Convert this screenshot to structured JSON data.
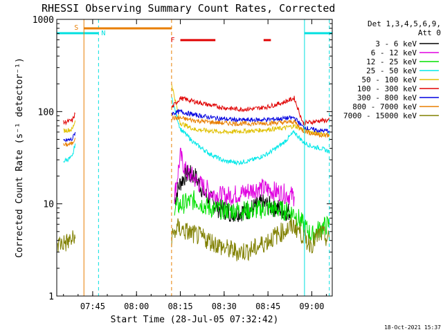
{
  "title": "RHESSI Observing Summary Count Rates, Corrected",
  "footer_date": "18-Oct-2021 15:37",
  "chart_data": {
    "type": "line",
    "title": "RHESSI Observing Summary Count Rates, Corrected",
    "xlabel": "Start Time (28-Jul-05 07:32:42)",
    "ylabel": "Corrected Count Rate (s⁻¹ detector⁻¹)",
    "y_scale": "log",
    "ylim": [
      1,
      1000
    ],
    "xlim": [
      "07:32:42",
      "09:07:00"
    ],
    "grid": false,
    "x_ticks": [
      "07:45",
      "08:00",
      "08:15",
      "08:30",
      "08:45",
      "09:00"
    ],
    "y_ticks": [
      "1",
      "10",
      "100",
      "1000"
    ],
    "legend_position": "right",
    "legend_header": [
      "Det 1,3,4,5,6,9,",
      "Att 0"
    ],
    "markers": [
      {
        "label": "S",
        "color": "#e87e00"
      },
      {
        "label": "N",
        "color": "#00e0e0"
      },
      {
        "label": "F",
        "color": "#e00000"
      }
    ],
    "night_intervals": [
      [
        "07:32:42",
        "07:47:00"
      ],
      [
        "08:57:30",
        "09:07:00"
      ]
    ],
    "saa_interval": [
      "07:42:00",
      "08:12:00"
    ],
    "flare_intervals": [
      [
        "08:15:00",
        "08:27:00"
      ],
      [
        "08:43:30",
        "08:46:00"
      ]
    ],
    "series": [
      {
        "name": "3 - 6 keV",
        "color": "#000000",
        "x": [
          "08:13",
          "08:15",
          "08:17",
          "08:20",
          "08:24",
          "08:28",
          "08:33",
          "08:38",
          "08:43",
          "08:48",
          "08:53"
        ],
        "values": [
          11,
          17,
          21,
          20,
          12,
          9,
          8,
          8.5,
          10,
          9,
          8
        ]
      },
      {
        "name": "6 - 12 keV",
        "color": "#e000e0",
        "x": [
          "08:13",
          "08:15",
          "08:17",
          "08:19",
          "08:22",
          "08:26",
          "08:30",
          "08:36",
          "08:42",
          "08:46",
          "08:50",
          "08:54"
        ],
        "values": [
          12,
          33,
          22,
          20,
          16,
          13,
          12,
          13,
          15,
          14,
          13,
          12
        ]
      },
      {
        "name": "12 - 25 keV",
        "color": "#00e000",
        "x": [
          "08:13",
          "08:16",
          "08:20",
          "08:25",
          "08:30",
          "08:35",
          "08:40",
          "08:45",
          "08:50",
          "08:54",
          "08:57",
          "09:00",
          "09:03",
          "09:06"
        ],
        "values": [
          9,
          10,
          11,
          9,
          8.5,
          8.5,
          8.5,
          9,
          8.5,
          8,
          6,
          4.5,
          5.5,
          6
        ]
      },
      {
        "name": "25 - 50 keV",
        "color": "#00e8e8",
        "x": [
          "07:35",
          "07:38",
          "07:39",
          "08:12",
          "08:15",
          "08:20",
          "08:25",
          "08:30",
          "08:35",
          "08:40",
          "08:45",
          "08:50",
          "08:54",
          "08:57",
          "09:00",
          "09:03",
          "09:06"
        ],
        "values": [
          29,
          32,
          45,
          140,
          65,
          45,
          35,
          29,
          28,
          30,
          35,
          45,
          60,
          47,
          42,
          40,
          37
        ]
      },
      {
        "name": "50 - 100 keV",
        "color": "#e0c000",
        "x": [
          "07:35",
          "07:38",
          "07:39",
          "08:12",
          "08:15",
          "08:20",
          "08:25",
          "08:30",
          "08:35",
          "08:40",
          "08:45",
          "08:50",
          "08:54",
          "08:57",
          "09:00",
          "09:03",
          "09:06"
        ],
        "values": [
          62,
          64,
          80,
          200,
          75,
          64,
          62,
          60,
          61,
          62,
          64,
          66,
          70,
          64,
          60,
          57,
          56
        ]
      },
      {
        "name": "100 - 300 keV",
        "color": "#e00000",
        "x": [
          "07:35",
          "07:38",
          "07:39",
          "08:12",
          "08:15",
          "08:20",
          "08:25",
          "08:30",
          "08:35",
          "08:40",
          "08:45",
          "08:50",
          "08:54",
          "08:57",
          "09:00",
          "09:03",
          "09:06"
        ],
        "values": [
          76,
          80,
          95,
          110,
          140,
          128,
          118,
          110,
          106,
          107,
          113,
          125,
          140,
          75,
          77,
          80,
          80
        ]
      },
      {
        "name": "300 - 800 keV",
        "color": "#0000e0",
        "x": [
          "07:35",
          "07:38",
          "07:39",
          "08:12",
          "08:15",
          "08:20",
          "08:25",
          "08:30",
          "08:35",
          "08:40",
          "08:45",
          "08:50",
          "08:54",
          "08:57",
          "09:00",
          "09:03",
          "09:06"
        ],
        "values": [
          48,
          50,
          60,
          95,
          100,
          92,
          87,
          83,
          81,
          81,
          82,
          84,
          86,
          68,
          64,
          62,
          62
        ]
      },
      {
        "name": "800 - 7000 keV",
        "color": "#e87e00",
        "x": [
          "07:35",
          "07:38",
          "07:39",
          "08:12",
          "08:15",
          "08:20",
          "08:25",
          "08:30",
          "08:35",
          "08:40",
          "08:45",
          "08:50",
          "08:54",
          "08:57",
          "09:00",
          "09:03",
          "09:06"
        ],
        "values": [
          43,
          45,
          52,
          85,
          85,
          80,
          77,
          75,
          74,
          74,
          75,
          76,
          78,
          62,
          58,
          56,
          55
        ]
      },
      {
        "name": "7000 - 15000 keV",
        "color": "#808000",
        "x": [
          "07:33",
          "07:36",
          "07:39",
          "08:12",
          "08:14",
          "08:17",
          "08:20",
          "08:25",
          "08:30",
          "08:35",
          "08:40",
          "08:45",
          "08:50",
          "08:54",
          "08:56",
          "08:58",
          "09:00",
          "09:03",
          "09:06"
        ],
        "values": [
          3.7,
          3.8,
          4.2,
          4.3,
          5.5,
          5.0,
          4.6,
          4.0,
          3.3,
          3.0,
          3.2,
          4.0,
          5.0,
          5.8,
          5.0,
          4.0,
          3.7,
          4.8,
          4.0
        ]
      }
    ]
  }
}
